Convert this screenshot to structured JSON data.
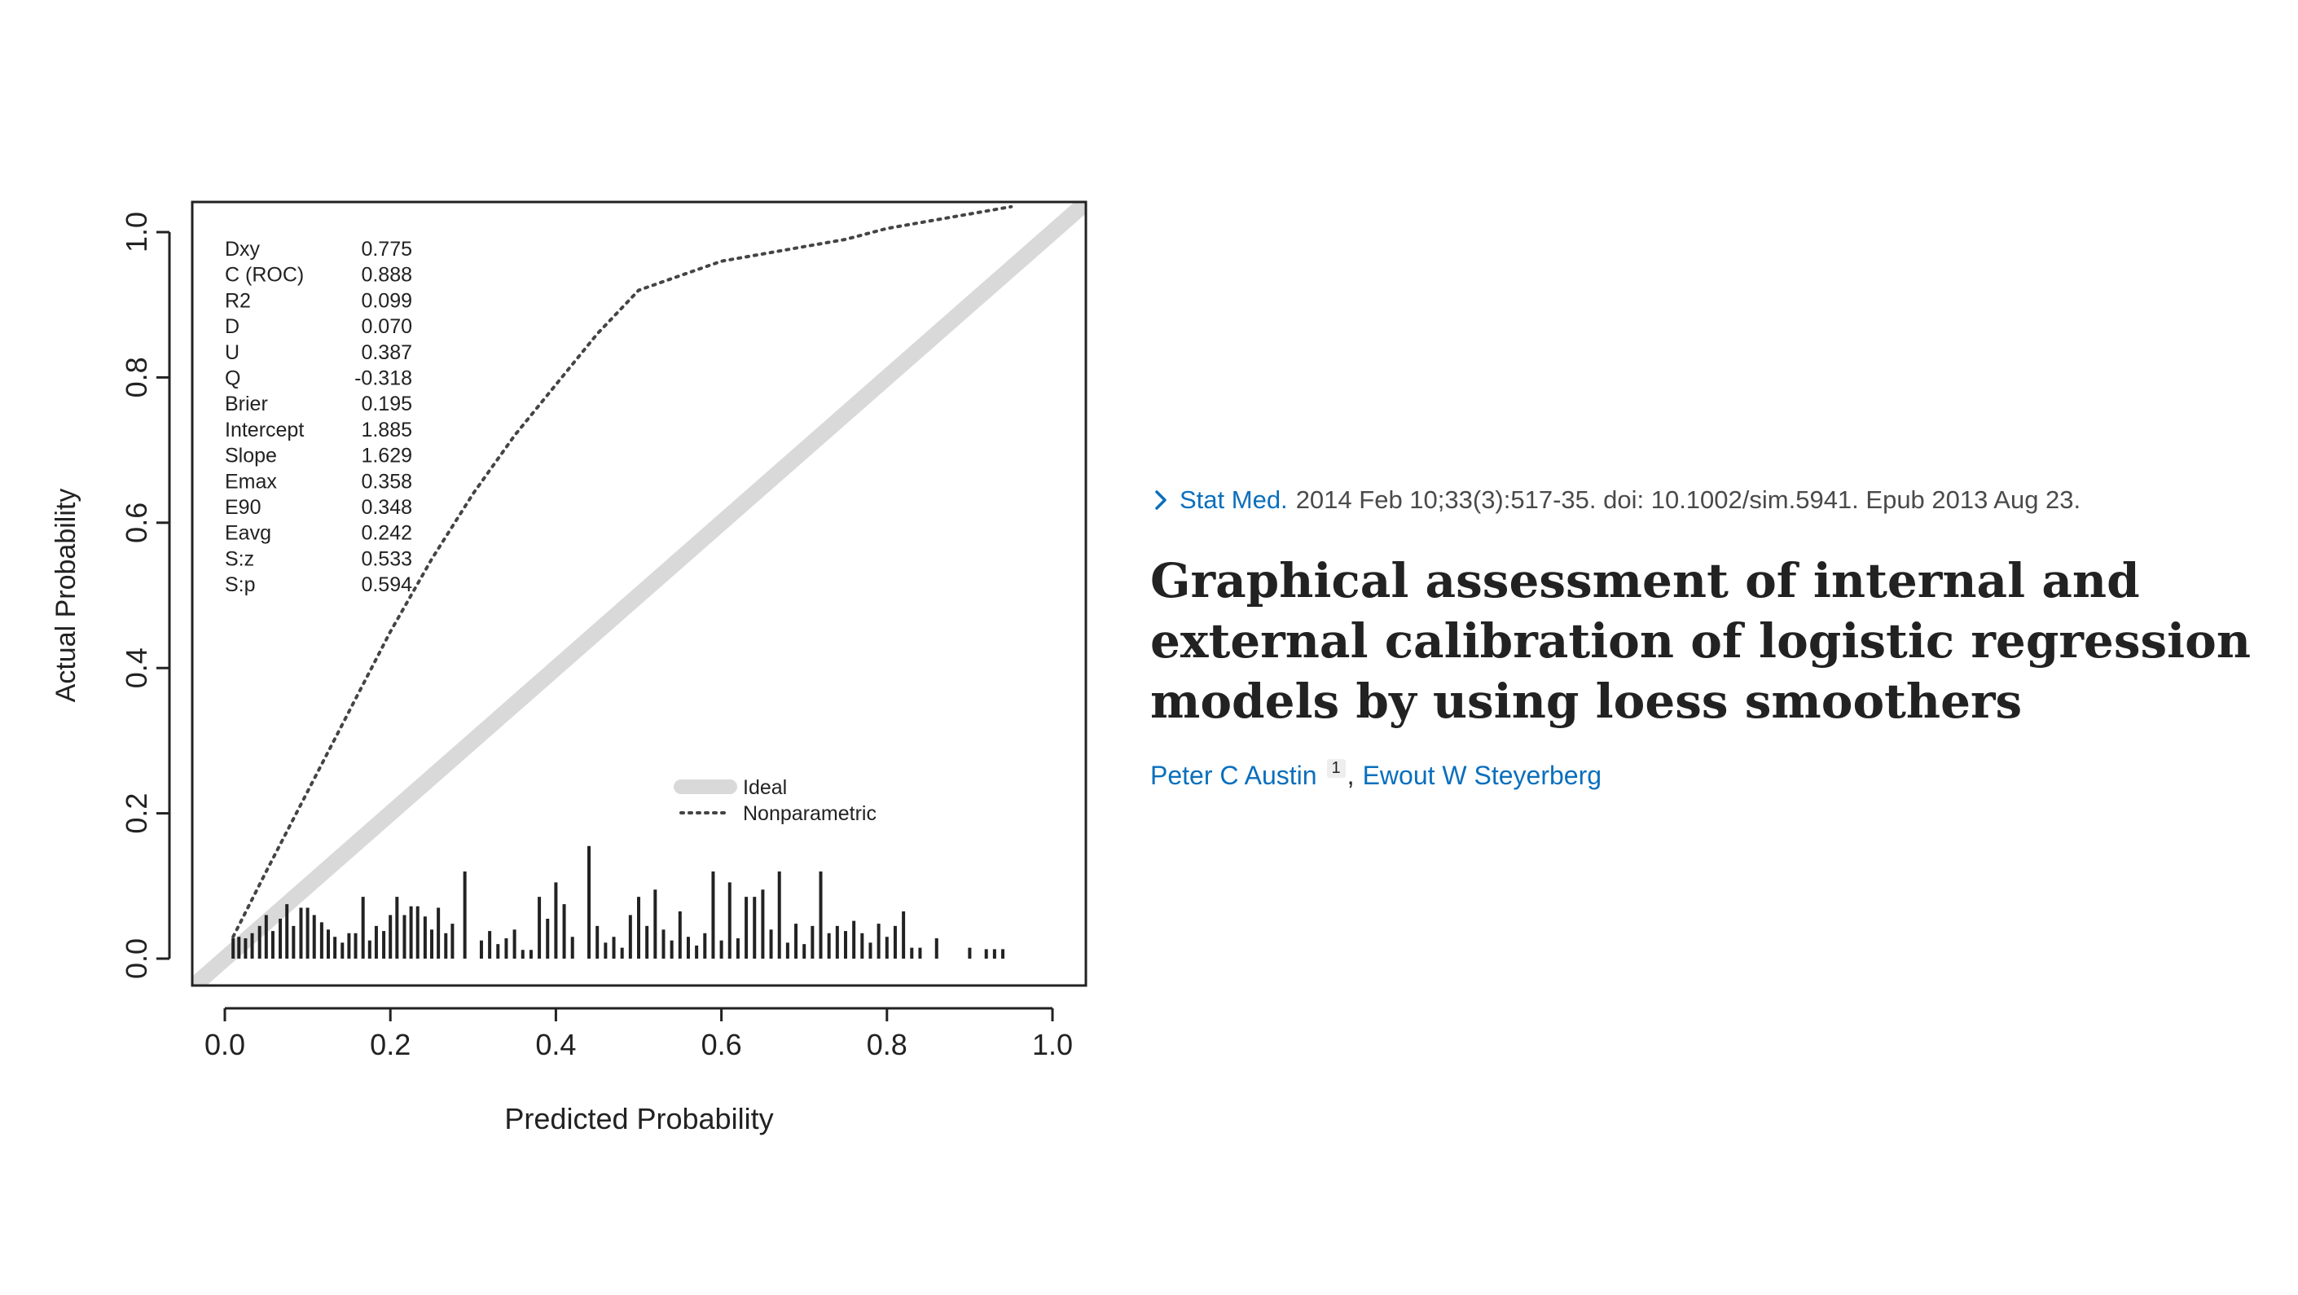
{
  "chart_data": {
    "type": "line",
    "xlabel": "Predicted Probability",
    "ylabel": "Actual Probability",
    "xlim": [
      0.0,
      1.0
    ],
    "ylim": [
      0.0,
      1.0
    ],
    "xticks": [
      "0.0",
      "0.2",
      "0.4",
      "0.6",
      "0.8",
      "1.0"
    ],
    "yticks": [
      "0.0",
      "0.2",
      "0.4",
      "0.6",
      "0.8",
      "1.0"
    ],
    "grid": false,
    "legend_position": "lower-right",
    "stats": [
      {
        "label": "Dxy",
        "value": "0.775"
      },
      {
        "label": "C (ROC)",
        "value": "0.888"
      },
      {
        "label": "R2",
        "value": "0.099"
      },
      {
        "label": "D",
        "value": "0.070"
      },
      {
        "label": "U",
        "value": "0.387"
      },
      {
        "label": "Q",
        "value": "-0.318"
      },
      {
        "label": "Brier",
        "value": "0.195"
      },
      {
        "label": "Intercept",
        "value": "1.885"
      },
      {
        "label": "Slope",
        "value": "1.629"
      },
      {
        "label": "Emax",
        "value": "0.358"
      },
      {
        "label": "E90",
        "value": "0.348"
      },
      {
        "label": "Eavg",
        "value": "0.242"
      },
      {
        "label": "S:z",
        "value": "0.533"
      },
      {
        "label": "S:p",
        "value": "0.594"
      }
    ],
    "series": [
      {
        "name": "Ideal",
        "style": "thick-gray",
        "color": "#d9d9d9",
        "x": [
          -0.04,
          1.04
        ],
        "y": [
          -0.04,
          1.04
        ]
      },
      {
        "name": "Nonparametric",
        "style": "dotted",
        "color": "#444444",
        "x": [
          0.01,
          0.05,
          0.1,
          0.15,
          0.2,
          0.25,
          0.3,
          0.35,
          0.4,
          0.45,
          0.5,
          0.55,
          0.6,
          0.65,
          0.7,
          0.75,
          0.8,
          0.85,
          0.9,
          0.95
        ],
        "y": [
          0.03,
          0.12,
          0.23,
          0.34,
          0.45,
          0.55,
          0.64,
          0.72,
          0.79,
          0.86,
          0.92,
          0.94,
          0.96,
          0.97,
          0.98,
          0.99,
          1.005,
          1.015,
          1.025,
          1.035
        ]
      }
    ],
    "rug": {
      "x": [
        0.01,
        0.017,
        0.025,
        0.033,
        0.042,
        0.05,
        0.058,
        0.067,
        0.075,
        0.083,
        0.092,
        0.1,
        0.108,
        0.117,
        0.125,
        0.133,
        0.142,
        0.15,
        0.158,
        0.167,
        0.175,
        0.183,
        0.192,
        0.2,
        0.208,
        0.217,
        0.225,
        0.233,
        0.242,
        0.25,
        0.258,
        0.267,
        0.275,
        0.29,
        0.31,
        0.32,
        0.33,
        0.34,
        0.35,
        0.36,
        0.37,
        0.38,
        0.39,
        0.4,
        0.41,
        0.42,
        0.44,
        0.45,
        0.46,
        0.47,
        0.48,
        0.49,
        0.5,
        0.51,
        0.52,
        0.53,
        0.54,
        0.55,
        0.56,
        0.57,
        0.58,
        0.59,
        0.6,
        0.61,
        0.62,
        0.63,
        0.64,
        0.65,
        0.66,
        0.67,
        0.68,
        0.69,
        0.7,
        0.71,
        0.72,
        0.73,
        0.74,
        0.75,
        0.76,
        0.77,
        0.78,
        0.79,
        0.8,
        0.81,
        0.82,
        0.83,
        0.84,
        0.86,
        0.9,
        0.92,
        0.93,
        0.94
      ],
      "height": [
        0.028,
        0.03,
        0.028,
        0.035,
        0.045,
        0.06,
        0.038,
        0.055,
        0.075,
        0.045,
        0.07,
        0.07,
        0.06,
        0.05,
        0.04,
        0.03,
        0.022,
        0.035,
        0.035,
        0.085,
        0.025,
        0.045,
        0.038,
        0.06,
        0.085,
        0.06,
        0.072,
        0.072,
        0.058,
        0.04,
        0.07,
        0.035,
        0.048,
        0.12,
        0.025,
        0.038,
        0.02,
        0.028,
        0.04,
        0.012,
        0.012,
        0.085,
        0.055,
        0.105,
        0.075,
        0.03,
        0.155,
        0.045,
        0.022,
        0.03,
        0.015,
        0.06,
        0.085,
        0.045,
        0.095,
        0.04,
        0.025,
        0.065,
        0.03,
        0.018,
        0.035,
        0.12,
        0.025,
        0.105,
        0.028,
        0.085,
        0.085,
        0.095,
        0.04,
        0.12,
        0.022,
        0.048,
        0.02,
        0.045,
        0.12,
        0.035,
        0.045,
        0.038,
        0.052,
        0.035,
        0.022,
        0.048,
        0.03,
        0.045,
        0.065,
        0.015,
        0.015,
        0.028,
        0.015,
        0.013,
        0.013,
        0.013
      ]
    }
  },
  "citation": {
    "journal": "Stat Med.",
    "details": "2014 Feb 10;33(3):517-35. doi: 10.1002/sim.5941. Epub 2013 Aug 23."
  },
  "title": "Graphical assessment of internal and external calibration of logistic regression models by using loess smoothers",
  "authors": [
    {
      "name": "Peter C Austin",
      "affiliation": "1"
    },
    {
      "name": "Ewout W Steyerberg"
    }
  ],
  "author_separator": ",",
  "icons": {
    "citation_chevron": "chevron-right-icon"
  },
  "colors": {
    "link": "#0a6fbd",
    "title": "#222222",
    "ideal_line": "#d9d9d9"
  }
}
